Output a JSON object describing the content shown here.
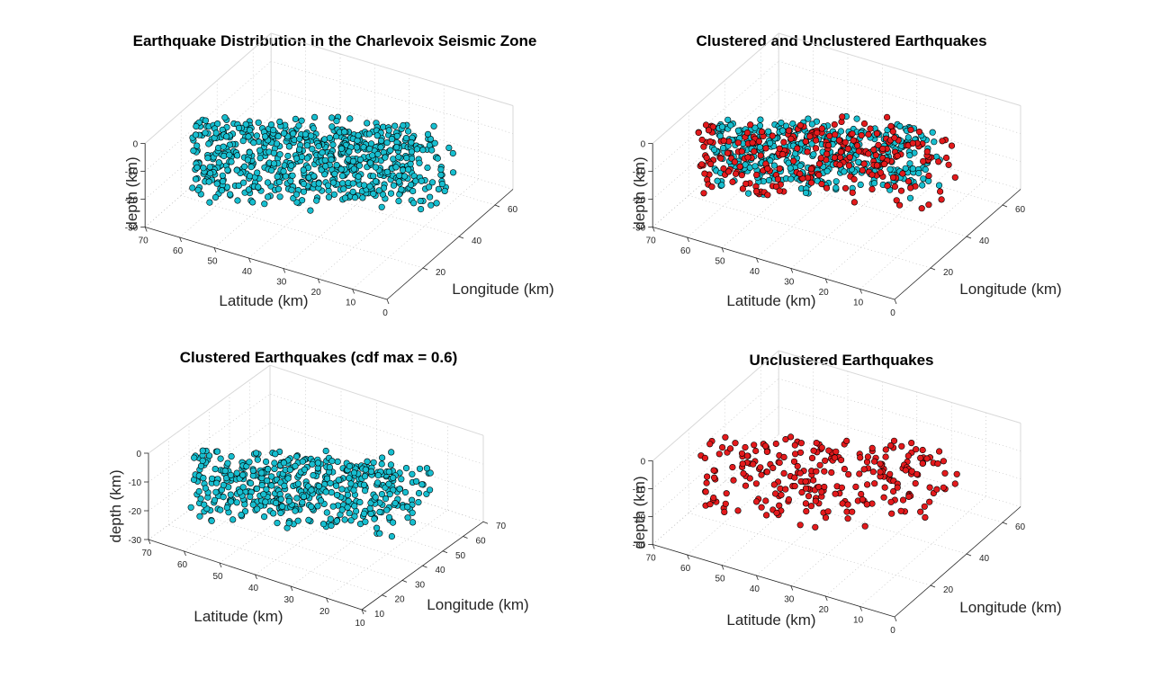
{
  "chart_data": [
    {
      "type": "scatter",
      "title": "Earthquake Distribution in the Charlevoix Seismic Zone",
      "xlabel": "Longitude (km)",
      "ylabel": "Latitude (km)",
      "zlabel": "depth (km)",
      "xlim": [
        0,
        70
      ],
      "ylim": [
        0,
        70
      ],
      "zlim": [
        -30,
        0
      ],
      "xticks": [
        20,
        40,
        60
      ],
      "yticks": [
        0,
        10,
        20,
        30,
        40,
        50,
        60,
        70
      ],
      "zticks": [
        -30,
        -20,
        -10,
        0
      ],
      "grid": true,
      "series": [
        {
          "color": "#17becf",
          "n_points": 700,
          "x_range": [
            12,
            56
          ],
          "y_range": [
            5,
            65
          ],
          "z_range": [
            -29,
            -2
          ]
        }
      ]
    },
    {
      "type": "scatter",
      "title": "Clustered and Unclustered Earthquakes",
      "xlabel": "Longitude (km)",
      "ylabel": "Latitude (km)",
      "zlabel": "depth (km)",
      "xlim": [
        0,
        70
      ],
      "ylim": [
        0,
        70
      ],
      "zlim": [
        -30,
        0
      ],
      "xticks": [
        20,
        40,
        60
      ],
      "yticks": [
        0,
        10,
        20,
        30,
        40,
        50,
        60,
        70
      ],
      "zticks": [
        -30,
        -20,
        -10,
        0
      ],
      "grid": true,
      "series": [
        {
          "color": "#17becf",
          "n_points": 450,
          "x_range": [
            14,
            54
          ],
          "y_range": [
            10,
            62
          ],
          "z_range": [
            -25,
            -2
          ]
        },
        {
          "color": "#e31a1c",
          "n_points": 260,
          "x_range": [
            12,
            56
          ],
          "y_range": [
            5,
            65
          ],
          "z_range": [
            -29,
            -2
          ]
        }
      ]
    },
    {
      "type": "scatter",
      "title": "Clustered Earthquakes (cdf max = 0.6)",
      "xlabel": "Longitude (km)",
      "ylabel": "Latitude (km)",
      "zlabel": "depth (km)",
      "xlim": [
        10,
        70
      ],
      "ylim": [
        10,
        70
      ],
      "zlim": [
        -30,
        0
      ],
      "xticks": [
        10,
        20,
        30,
        40,
        50,
        60,
        70
      ],
      "yticks": [
        10,
        20,
        30,
        40,
        50,
        60,
        70
      ],
      "zticks": [
        -30,
        -20,
        -10,
        0
      ],
      "grid": true,
      "series": [
        {
          "color": "#17becf",
          "n_points": 480,
          "x_range": [
            14,
            54
          ],
          "y_range": [
            10,
            62
          ],
          "z_range": [
            -25,
            -2
          ]
        }
      ]
    },
    {
      "type": "scatter",
      "title": "Unclustered Earthquakes",
      "xlabel": "Longitude (km)",
      "ylabel": "Latitude (km)",
      "zlabel": "depth (km)",
      "xlim": [
        0,
        70
      ],
      "ylim": [
        0,
        70
      ],
      "zlim": [
        -30,
        0
      ],
      "xticks": [
        20,
        40,
        60
      ],
      "yticks": [
        0,
        10,
        20,
        30,
        40,
        50,
        60,
        70
      ],
      "zticks": [
        -30,
        -20,
        -10,
        0
      ],
      "grid": true,
      "series": [
        {
          "color": "#e31a1c",
          "n_points": 260,
          "x_range": [
            12,
            56
          ],
          "y_range": [
            5,
            65
          ],
          "z_range": [
            -29,
            -2
          ]
        }
      ]
    }
  ]
}
